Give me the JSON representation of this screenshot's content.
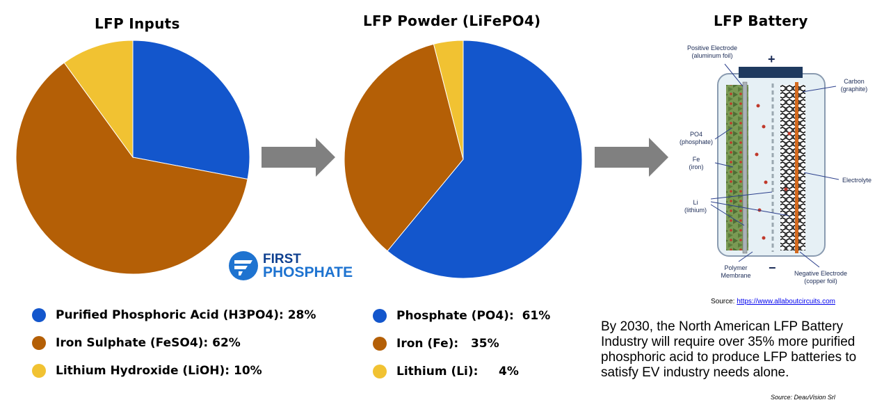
{
  "colors": {
    "blue": "#1356cc",
    "brown": "#b45f06",
    "yellow": "#f1c232",
    "arrow": "#808080"
  },
  "chart_data": [
    {
      "type": "pie",
      "title": "LFP Inputs",
      "slices": [
        {
          "label": "Purified Phosphoric Acid (H3PO4)",
          "value": 28,
          "display": "Purified Phosphoric Acid (H3PO4):  28%",
          "color": "#1356cc"
        },
        {
          "label": "Iron Sulphate (FeSO4)",
          "value": 62,
          "display": "Iron Sulphate (FeSO4):  62%",
          "color": "#b45f06"
        },
        {
          "label": "Lithium Hydroxide (LiOH)",
          "value": 10,
          "display": "Lithium Hydroxide (LiOH):  10%",
          "color": "#f1c232"
        }
      ]
    },
    {
      "type": "pie",
      "title": "LFP Powder (LiFePO4)",
      "slices": [
        {
          "label": "Phosphate (PO4)",
          "value": 61,
          "display": "Phosphate (PO4):  61%",
          "color": "#1356cc"
        },
        {
          "label": "Iron (Fe)",
          "value": 35,
          "display": "Iron (Fe):   35%",
          "color": "#b45f06"
        },
        {
          "label": "Lithium (Li)",
          "value": 4,
          "display": "Lithium (Li):     4%",
          "color": "#f1c232"
        }
      ]
    }
  ],
  "battery": {
    "title": "LFP Battery",
    "plus": "+",
    "minus": "−",
    "labels": {
      "positive_electrode": "Positive Electrode\n(aluminum foil)",
      "carbon": "Carbon\n(graphite)",
      "po4": "PO4\n(phosphate)",
      "fe": "Fe\n(iron)",
      "electrolyte": "Electrolyte",
      "li": "Li\n(lithium)",
      "polymer": "Polymer\nMembrane",
      "negative_electrode": "Negative Electrode\n(copper foil)"
    },
    "source_prefix": "Source: ",
    "source_link": "https://www.allaboutcircuits.com"
  },
  "logo": {
    "line1": "FIRST",
    "line2": "PHOSPHATE"
  },
  "note": "By 2030, the North American LFP Battery Industry will require over 35% more purified phosphoric acid to produce LFP batteries to satisfy EV industry needs alone.",
  "source2": "Source:  DeauVision Srl"
}
